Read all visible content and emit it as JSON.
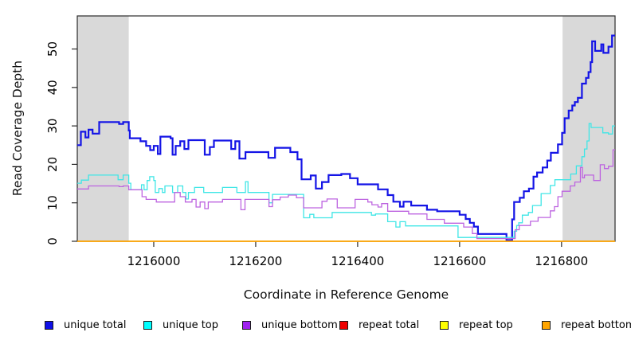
{
  "chart_data": {
    "type": "line",
    "step": true,
    "title": "",
    "xlabel": "Coordinate in Reference Genome",
    "ylabel": "Read Coverage Depth",
    "xlim": [
      1215850,
      1216905
    ],
    "ylim": [
      0,
      58.6
    ],
    "x_ticks": [
      1216000,
      1216200,
      1216400,
      1216600,
      1216800
    ],
    "y_ticks": [
      0,
      10,
      20,
      30,
      40,
      50
    ],
    "grid": false,
    "legend_position": "bottom",
    "plot_bg": "#ffffff",
    "box_color": "#2b2b2b",
    "shaded_region_color": "#d9d9d9",
    "shaded_regions": [
      {
        "x0": 1215850,
        "x1": 1215951
      },
      {
        "x0": 1216802,
        "x1": 1216905
      }
    ],
    "series": [
      {
        "name": "unique total",
        "color": "#1414e6",
        "swatch": "#1010e8",
        "width": 2.2,
        "points": [
          [
            1215850,
            25
          ],
          [
            1215857,
            28.5
          ],
          [
            1215866,
            27
          ],
          [
            1215872,
            29
          ],
          [
            1215880,
            28
          ],
          [
            1215893,
            31
          ],
          [
            1215932,
            30.5
          ],
          [
            1215940,
            31
          ],
          [
            1215951,
            28.8
          ],
          [
            1215953,
            26.8
          ],
          [
            1215974,
            26
          ],
          [
            1215985,
            24.8
          ],
          [
            1215993,
            23.7
          ],
          [
            1216000,
            24.8
          ],
          [
            1216008,
            22.7
          ],
          [
            1216013,
            27.2
          ],
          [
            1216033,
            26.8
          ],
          [
            1216037,
            22.5
          ],
          [
            1216043,
            24.8
          ],
          [
            1216052,
            26
          ],
          [
            1216060,
            24
          ],
          [
            1216068,
            26.3
          ],
          [
            1216100,
            22.5
          ],
          [
            1216110,
            24.5
          ],
          [
            1216118,
            26.2
          ],
          [
            1216152,
            24
          ],
          [
            1216160,
            26
          ],
          [
            1216168,
            21.5
          ],
          [
            1216180,
            23.2
          ],
          [
            1216225,
            21.7
          ],
          [
            1216238,
            24.3
          ],
          [
            1216268,
            23.2
          ],
          [
            1216282,
            21.3
          ],
          [
            1216290,
            16.1
          ],
          [
            1216308,
            17.1
          ],
          [
            1216318,
            13.7
          ],
          [
            1216330,
            15.4
          ],
          [
            1216343,
            17.2
          ],
          [
            1216368,
            17.5
          ],
          [
            1216385,
            16.4
          ],
          [
            1216400,
            14.8
          ],
          [
            1216440,
            13.5
          ],
          [
            1216459,
            12
          ],
          [
            1216470,
            10.3
          ],
          [
            1216483,
            9
          ],
          [
            1216490,
            10.3
          ],
          [
            1216505,
            9.3
          ],
          [
            1216536,
            8.2
          ],
          [
            1216556,
            7.8
          ],
          [
            1216600,
            6.9
          ],
          [
            1216612,
            5.8
          ],
          [
            1216620,
            4.8
          ],
          [
            1216628,
            3.8
          ],
          [
            1216636,
            1.9
          ],
          [
            1216692,
            0.3
          ],
          [
            1216703,
            5.7
          ],
          [
            1216707,
            10.2
          ],
          [
            1216718,
            11.3
          ],
          [
            1216726,
            13
          ],
          [
            1216736,
            13.7
          ],
          [
            1216745,
            16.8
          ],
          [
            1216752,
            17.9
          ],
          [
            1216763,
            19.2
          ],
          [
            1216772,
            21
          ],
          [
            1216779,
            23
          ],
          [
            1216793,
            25.2
          ],
          [
            1216801,
            28.2
          ],
          [
            1216806,
            32
          ],
          [
            1216814,
            34
          ],
          [
            1216821,
            35.3
          ],
          [
            1216826,
            36.2
          ],
          [
            1216832,
            37.3
          ],
          [
            1216840,
            41
          ],
          [
            1216848,
            42.5
          ],
          [
            1216853,
            44
          ],
          [
            1216857,
            46.6
          ],
          [
            1216860,
            52
          ],
          [
            1216866,
            49.5
          ],
          [
            1216878,
            51.2
          ],
          [
            1216882,
            49
          ],
          [
            1216892,
            50.6
          ],
          [
            1216899,
            53.5
          ]
        ]
      },
      {
        "name": "unique top",
        "color": "#3fe6e6",
        "swatch": "#00ffff",
        "width": 1.3,
        "points": [
          [
            1215850,
            15.1
          ],
          [
            1215858,
            15.9
          ],
          [
            1215872,
            17.2
          ],
          [
            1215930,
            16
          ],
          [
            1215940,
            17.2
          ],
          [
            1215951,
            15.1
          ],
          [
            1215955,
            13.4
          ],
          [
            1215976,
            14.7
          ],
          [
            1215981,
            13.4
          ],
          [
            1215987,
            15.8
          ],
          [
            1215992,
            16.8
          ],
          [
            1216000,
            15.8
          ],
          [
            1216003,
            12.7
          ],
          [
            1216010,
            13.7
          ],
          [
            1216017,
            12.7
          ],
          [
            1216022,
            14.4
          ],
          [
            1216037,
            12.7
          ],
          [
            1216047,
            14.4
          ],
          [
            1216057,
            12.7
          ],
          [
            1216063,
            11
          ],
          [
            1216068,
            12.7
          ],
          [
            1216080,
            14
          ],
          [
            1216098,
            12.7
          ],
          [
            1216135,
            14
          ],
          [
            1216163,
            12.7
          ],
          [
            1216180,
            15.5
          ],
          [
            1216185,
            12.7
          ],
          [
            1216226,
            10
          ],
          [
            1216233,
            12.2
          ],
          [
            1216294,
            6.1
          ],
          [
            1216306,
            7
          ],
          [
            1216314,
            6.1
          ],
          [
            1216350,
            7.5
          ],
          [
            1216427,
            6.8
          ],
          [
            1216435,
            7.1
          ],
          [
            1216459,
            5.1
          ],
          [
            1216475,
            3.7
          ],
          [
            1216483,
            5.1
          ],
          [
            1216494,
            4
          ],
          [
            1216597,
            1
          ],
          [
            1216707,
            2.6
          ],
          [
            1216712,
            4.1
          ],
          [
            1216716,
            4.8
          ],
          [
            1216723,
            6.8
          ],
          [
            1216735,
            7.5
          ],
          [
            1216743,
            9.3
          ],
          [
            1216760,
            12.4
          ],
          [
            1216778,
            14.5
          ],
          [
            1216787,
            16
          ],
          [
            1216818,
            17.5
          ],
          [
            1216829,
            19.6
          ],
          [
            1216840,
            22
          ],
          [
            1216845,
            24
          ],
          [
            1216850,
            26.1
          ],
          [
            1216854,
            30.6
          ],
          [
            1216858,
            29.6
          ],
          [
            1216881,
            28.2
          ],
          [
            1216892,
            27.9
          ],
          [
            1216900,
            30
          ]
        ]
      },
      {
        "name": "unique bottom",
        "color": "#bd64e0",
        "swatch": "#a020f0",
        "width": 1.3,
        "points": [
          [
            1215850,
            13.6
          ],
          [
            1215872,
            14.4
          ],
          [
            1215932,
            14.2
          ],
          [
            1215940,
            14.4
          ],
          [
            1215951,
            13.4
          ],
          [
            1215977,
            11.6
          ],
          [
            1215985,
            10.9
          ],
          [
            1216005,
            10.2
          ],
          [
            1216041,
            12.7
          ],
          [
            1216052,
            11.6
          ],
          [
            1216062,
            10.2
          ],
          [
            1216075,
            10.9
          ],
          [
            1216083,
            8.9
          ],
          [
            1216091,
            10.2
          ],
          [
            1216100,
            8.5
          ],
          [
            1216107,
            10.2
          ],
          [
            1216135,
            10.9
          ],
          [
            1216171,
            8.2
          ],
          [
            1216179,
            10.9
          ],
          [
            1216226,
            9
          ],
          [
            1216233,
            10.8
          ],
          [
            1216248,
            11.5
          ],
          [
            1216264,
            12
          ],
          [
            1216280,
            11.3
          ],
          [
            1216294,
            8.7
          ],
          [
            1216330,
            10.4
          ],
          [
            1216340,
            11
          ],
          [
            1216360,
            8.7
          ],
          [
            1216395,
            10.9
          ],
          [
            1216420,
            10.2
          ],
          [
            1216428,
            9.5
          ],
          [
            1216440,
            8.9
          ],
          [
            1216447,
            9.8
          ],
          [
            1216459,
            7.8
          ],
          [
            1216500,
            7.1
          ],
          [
            1216536,
            5.7
          ],
          [
            1216570,
            4.7
          ],
          [
            1216608,
            3.7
          ],
          [
            1216625,
            2
          ],
          [
            1216634,
            0.7
          ],
          [
            1216709,
            3
          ],
          [
            1216717,
            4.1
          ],
          [
            1216739,
            5.2
          ],
          [
            1216754,
            6.2
          ],
          [
            1216778,
            7.9
          ],
          [
            1216786,
            9
          ],
          [
            1216793,
            11.6
          ],
          [
            1216801,
            13
          ],
          [
            1216817,
            14.4
          ],
          [
            1216826,
            15.4
          ],
          [
            1216837,
            19.2
          ],
          [
            1216841,
            16.5
          ],
          [
            1216845,
            17.2
          ],
          [
            1216863,
            15.8
          ],
          [
            1216876,
            19.9
          ],
          [
            1216884,
            18.9
          ],
          [
            1216892,
            19.5
          ],
          [
            1216901,
            23.8
          ]
        ]
      },
      {
        "name": "repeat total",
        "color": "#dd0000",
        "swatch": "#ee0000",
        "width": 1,
        "points": [
          [
            1215850,
            0
          ]
        ]
      },
      {
        "name": "repeat top",
        "color": "#f0f000",
        "swatch": "#ffff00",
        "width": 1,
        "points": [
          [
            1215850,
            0
          ]
        ]
      },
      {
        "name": "repeat bottom",
        "color": "#ffa500",
        "swatch": "#ffa500",
        "width": 1.7,
        "points": [
          [
            1215850,
            0
          ]
        ]
      }
    ]
  },
  "legend_item_lefts": [
    56,
    180,
    304,
    426,
    552,
    680
  ]
}
